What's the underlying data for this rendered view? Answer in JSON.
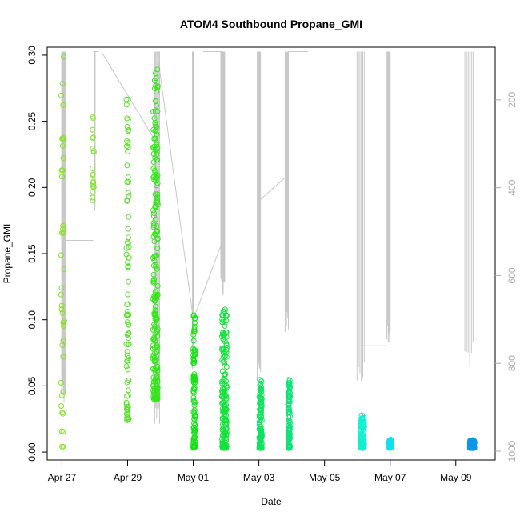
{
  "chart_data": {
    "type": "scatter",
    "title": "ATOM4 Southbound Propane_GMI",
    "xlabel": "Date",
    "ylabel": "Propane_GMI",
    "x_ticks": [
      "Apr 27",
      "Apr 29",
      "May 01",
      "May 03",
      "May 05",
      "May 07",
      "May 09"
    ],
    "x_tick_days": [
      0,
      2,
      4,
      6,
      8,
      10,
      12
    ],
    "xlim_days": [
      -0.45,
      13.2
    ],
    "ylim": [
      -0.006,
      0.306
    ],
    "y_ticks": [
      0.0,
      0.05,
      0.1,
      0.15,
      0.2,
      0.25,
      0.3
    ],
    "y_tick_labels": [
      "0.00",
      "0.05",
      "0.10",
      "0.15",
      "0.20",
      "0.25",
      "0.30"
    ],
    "right_axis": {
      "ticks": [
        200,
        400,
        600,
        800,
        1000
      ],
      "range": [
        80,
        1020
      ],
      "inverted": true,
      "color": "#aaaaaa"
    },
    "altitude_trace_color": "#c8c8c8",
    "clusters": [
      {
        "day": 0.02,
        "spread": 0.1,
        "n": 40,
        "ymin": 0.004,
        "ymax": 0.3,
        "color": "#7ee51e"
      },
      {
        "day": 0.95,
        "spread": 0.05,
        "n": 22,
        "ymin": 0.19,
        "ymax": 0.255,
        "color": "#8ae63a"
      },
      {
        "day": 2.0,
        "spread": 0.08,
        "n": 80,
        "ymin": 0.024,
        "ymax": 0.27,
        "color": "#59e02a"
      },
      {
        "day": 2.85,
        "spread": 0.15,
        "n": 220,
        "ymin": 0.04,
        "ymax": 0.29,
        "color": "#35e51a"
      },
      {
        "day": 4.03,
        "spread": 0.06,
        "n": 90,
        "ymin": 0.003,
        "ymax": 0.108,
        "color": "#18e018"
      },
      {
        "day": 4.95,
        "spread": 0.15,
        "n": 160,
        "ymin": 0.003,
        "ymax": 0.113,
        "color": "#13e23a"
      },
      {
        "day": 6.05,
        "spread": 0.08,
        "n": 120,
        "ymin": 0.003,
        "ymax": 0.055,
        "color": "#0fe35f"
      },
      {
        "day": 6.92,
        "spread": 0.06,
        "n": 110,
        "ymin": 0.003,
        "ymax": 0.055,
        "color": "#0fe27a"
      },
      {
        "day": 9.15,
        "spread": 0.12,
        "n": 90,
        "ymin": 0.003,
        "ymax": 0.028,
        "color": "#0ff0d0"
      },
      {
        "day": 10.0,
        "spread": 0.06,
        "n": 40,
        "ymin": 0.003,
        "ymax": 0.01,
        "color": "#0fe0f0"
      },
      {
        "day": 12.5,
        "spread": 0.15,
        "n": 120,
        "ymin": 0.003,
        "ymax": 0.009,
        "color": "#1096e8"
      }
    ],
    "altitude_profiles": [
      {
        "day": 0.05,
        "spread": 0.12,
        "top": 90,
        "bottom": 860
      },
      {
        "day": 1.0,
        "spread": 0.02,
        "top": 90,
        "bottom": 430
      },
      {
        "day": 2.9,
        "spread": 0.15,
        "top": 90,
        "bottom": 920
      },
      {
        "day": 4.0,
        "spread": 0.05,
        "top": 90,
        "bottom": 790
      },
      {
        "day": 4.9,
        "spread": 0.12,
        "top": 90,
        "bottom": 620
      },
      {
        "day": 6.0,
        "spread": 0.1,
        "top": 90,
        "bottom": 820
      },
      {
        "day": 6.85,
        "spread": 0.1,
        "top": 90,
        "bottom": 700
      },
      {
        "day": 9.1,
        "spread": 0.22,
        "top": 90,
        "bottom": 820
      },
      {
        "day": 9.95,
        "spread": 0.1,
        "top": 90,
        "bottom": 740
      },
      {
        "day": 12.4,
        "spread": 0.25,
        "top": 90,
        "bottom": 780
      }
    ],
    "grid": false,
    "legend": "none"
  }
}
